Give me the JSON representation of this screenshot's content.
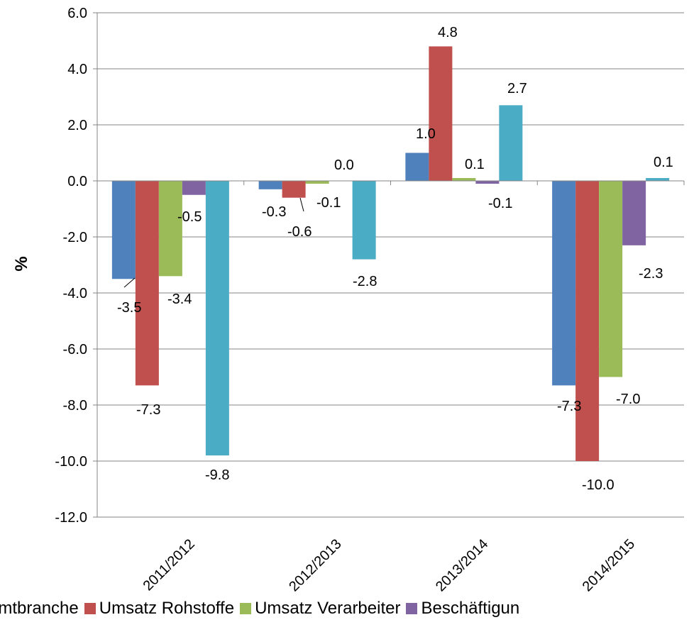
{
  "chart_data": {
    "type": "bar",
    "ylabel": "%",
    "ylim": [
      -12,
      6
    ],
    "yticks": [
      "6.0",
      "4.0",
      "2.0",
      "0.0",
      "-2.0",
      "-4.0",
      "-6.0",
      "-8.0",
      "-10.0",
      "-12.0"
    ],
    "ytick_values": [
      6,
      4,
      2,
      0,
      -2,
      -4,
      -6,
      -8,
      -10,
      -12
    ],
    "categories": [
      "2011/2012",
      "2012/2013",
      "2013/2014",
      "2014/2015"
    ],
    "grid": true,
    "legend_position": "bottom",
    "series": [
      {
        "name": "Gesamtbranche",
        "legend_visible": "amtbranche",
        "color": "#4f81bd",
        "values": [
          -3.5,
          -0.3,
          1.0,
          -7.3
        ],
        "labels": [
          "-3.5",
          "-0.3",
          "1.0",
          "-7.3"
        ]
      },
      {
        "name": "Umsatz Rohstoffe",
        "legend_visible": "Umsatz Rohstoffe",
        "color": "#c0504d",
        "values": [
          -7.3,
          -0.6,
          4.8,
          -10.0
        ],
        "labels": [
          "-7.3",
          "-0.6",
          "4.8",
          "-10.0"
        ]
      },
      {
        "name": "Umsatz Verarbeiter",
        "legend_visible": "Umsatz Verarbeiter",
        "color": "#9bbb59",
        "values": [
          -3.4,
          -0.1,
          0.1,
          -7.0
        ],
        "labels": [
          "-3.4",
          "-0.1",
          "0.1",
          "-7.0"
        ]
      },
      {
        "name": "Beschäftigung",
        "legend_visible": "Beschäftigun",
        "color": "#8064a2",
        "values": [
          -0.5,
          0.0,
          -0.1,
          -2.3
        ],
        "labels": [
          "-0.5",
          "0.0",
          "-0.1",
          "-2.3"
        ]
      },
      {
        "name": "",
        "color": "#4bacc6",
        "values": [
          -9.8,
          -2.8,
          2.7,
          0.1
        ],
        "labels": [
          "-9.8",
          "-2.8",
          "2.7",
          "0.1"
        ]
      }
    ]
  }
}
